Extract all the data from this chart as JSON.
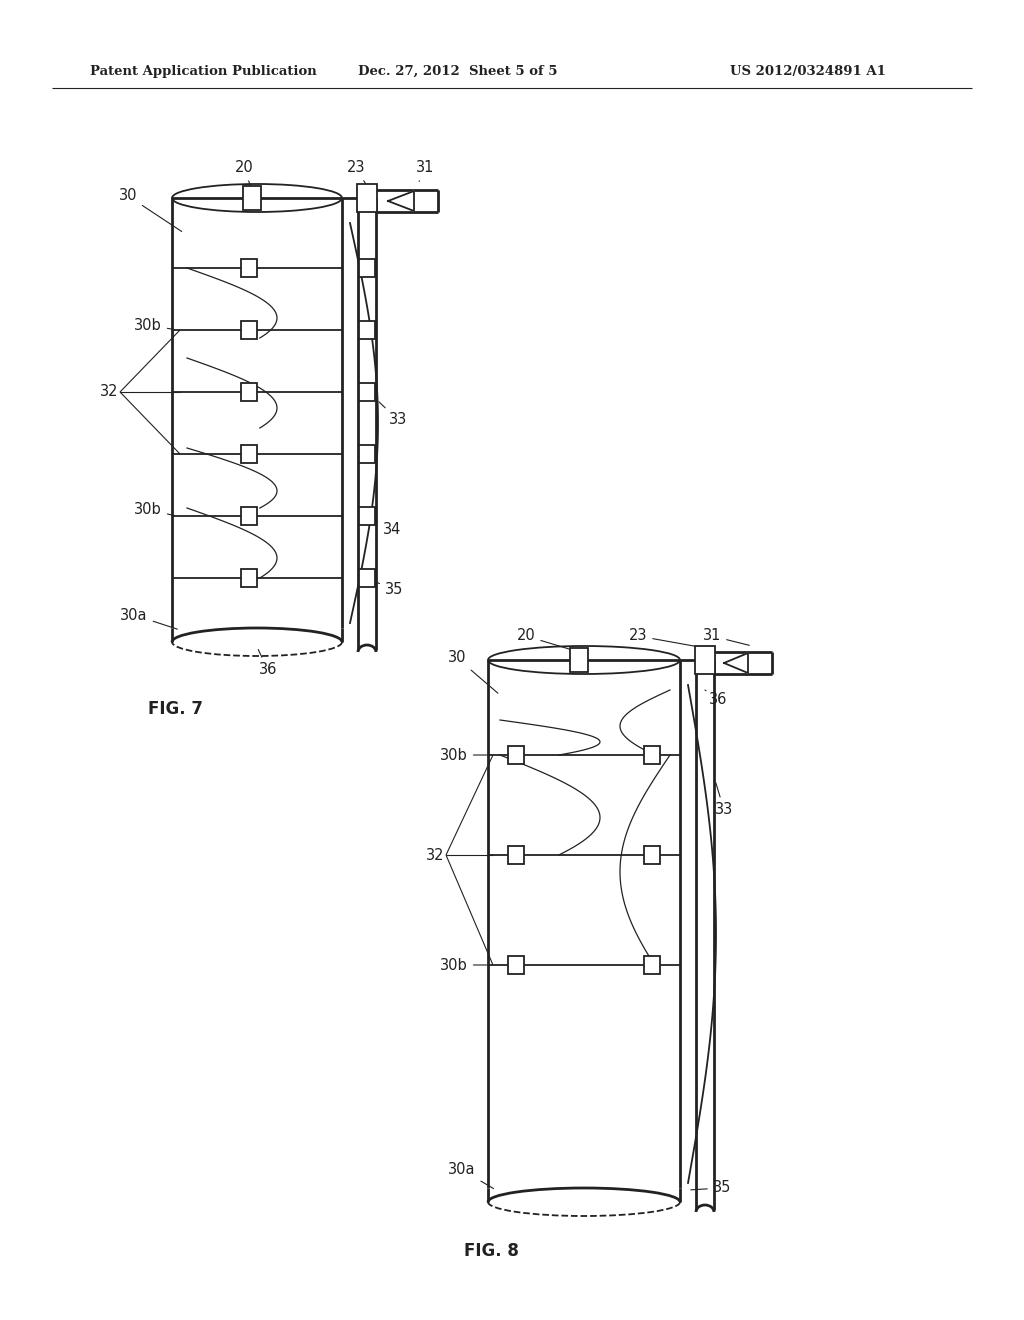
{
  "bg_color": "#ffffff",
  "line_color": "#222222",
  "header_text": "Patent Application Publication",
  "header_date": "Dec. 27, 2012  Sheet 5 of 5",
  "header_patent": "US 2012/0324891 A1",
  "fig7_label": "FIG. 7",
  "fig8_label": "FIG. 8"
}
